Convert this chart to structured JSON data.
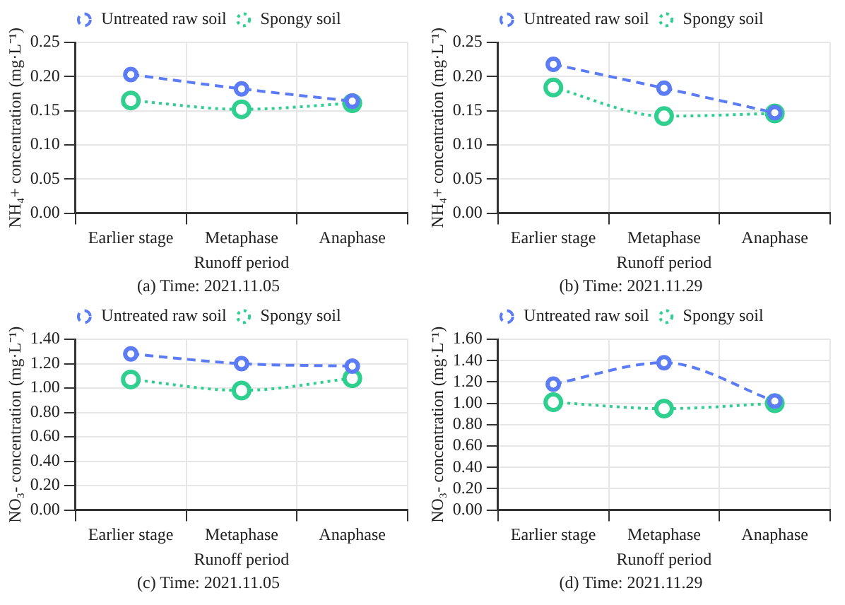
{
  "chart_data": [
    {
      "type": "line",
      "title": "(a) Time: 2021.11.05",
      "xlabel": "Runoff period",
      "ylabel": "NH₄+ concentration (mg·L⁻¹)",
      "categories": [
        "Earlier stage",
        "Metaphase",
        "Anaphase"
      ],
      "series": [
        {
          "name": "Untreated raw soil",
          "color": "#5b7cf5",
          "line_style": "dashed",
          "values": [
            0.203,
            0.182,
            0.164
          ]
        },
        {
          "name": "Spongy soil",
          "color": "#2ecf8f",
          "line_style": "dotted",
          "values": [
            0.165,
            0.152,
            0.161
          ]
        }
      ],
      "ylim": [
        0,
        0.25
      ],
      "yticks": [
        {
          "value": 0,
          "label": "0.00"
        },
        {
          "value": 0.05,
          "label": "0.05"
        },
        {
          "value": 0.1,
          "label": "0.10"
        },
        {
          "value": 0.15,
          "label": "0.15"
        },
        {
          "value": 0.2,
          "label": "0.20"
        },
        {
          "value": 0.25,
          "label": "0.25"
        }
      ],
      "grid": true,
      "legend": "top",
      "marker": "circle"
    },
    {
      "type": "line",
      "title": "(b) Time: 2021.11.29",
      "xlabel": "Runoff period",
      "ylabel": "NH₄+ concentration (mg·L⁻¹)",
      "categories": [
        "Earlier stage",
        "Metaphase",
        "Anaphase"
      ],
      "series": [
        {
          "name": "Untreated raw soil",
          "color": "#5b7cf5",
          "line_style": "dashed",
          "values": [
            0.218,
            0.183,
            0.147
          ]
        },
        {
          "name": "Spongy soil",
          "color": "#2ecf8f",
          "line_style": "dotted",
          "values": [
            0.184,
            0.142,
            0.146
          ]
        }
      ],
      "ylim": [
        0,
        0.25
      ],
      "yticks": [
        {
          "value": 0,
          "label": "0.00"
        },
        {
          "value": 0.05,
          "label": "0.05"
        },
        {
          "value": 0.1,
          "label": "0.10"
        },
        {
          "value": 0.15,
          "label": "0.15"
        },
        {
          "value": 0.2,
          "label": "0.20"
        },
        {
          "value": 0.25,
          "label": "0.25"
        }
      ],
      "grid": true,
      "legend": "top",
      "marker": "circle"
    },
    {
      "type": "line",
      "title": "(c) Time: 2021.11.05",
      "xlabel": "Runoff period",
      "ylabel": "NO₃- concentration (mg·L⁻¹)",
      "categories": [
        "Earlier stage",
        "Metaphase",
        "Anaphase"
      ],
      "series": [
        {
          "name": "Untreated raw soil",
          "color": "#5b7cf5",
          "line_style": "dashed",
          "values": [
            1.28,
            1.2,
            1.18
          ]
        },
        {
          "name": "Spongy soil",
          "color": "#2ecf8f",
          "line_style": "dotted",
          "values": [
            1.07,
            0.98,
            1.08
          ]
        }
      ],
      "ylim": [
        0,
        1.4
      ],
      "yticks": [
        {
          "value": 0,
          "label": "0.00"
        },
        {
          "value": 0.2,
          "label": "0.20"
        },
        {
          "value": 0.4,
          "label": "0.40"
        },
        {
          "value": 0.6,
          "label": "0.60"
        },
        {
          "value": 0.8,
          "label": "0.80"
        },
        {
          "value": 1,
          "label": "1.00"
        },
        {
          "value": 1.2,
          "label": "1.20"
        },
        {
          "value": 1.4,
          "label": "1.40"
        }
      ],
      "grid": true,
      "legend": "top",
      "marker": "circle"
    },
    {
      "type": "line",
      "title": "(d) Time: 2021.11.29",
      "xlabel": "Runoff period",
      "ylabel": "NO₃- concentration (mg·L⁻¹)",
      "categories": [
        "Earlier stage",
        "Metaphase",
        "Anaphase"
      ],
      "series": [
        {
          "name": "Untreated raw soil",
          "color": "#5b7cf5",
          "line_style": "dashed",
          "values": [
            1.18,
            1.38,
            1.02
          ]
        },
        {
          "name": "Spongy soil",
          "color": "#2ecf8f",
          "line_style": "dotted",
          "values": [
            1.01,
            0.95,
            1.0
          ]
        }
      ],
      "ylim": [
        0,
        1.6
      ],
      "yticks": [
        {
          "value": 0,
          "label": "0.00"
        },
        {
          "value": 0.2,
          "label": "0.20"
        },
        {
          "value": 0.4,
          "label": "0.40"
        },
        {
          "value": 0.6,
          "label": "0.60"
        },
        {
          "value": 0.8,
          "label": "0.80"
        },
        {
          "value": 1,
          "label": "1.00"
        },
        {
          "value": 1.2,
          "label": "1.20"
        },
        {
          "value": 1.4,
          "label": "1.40"
        },
        {
          "value": 1.6,
          "label": "1.60"
        }
      ],
      "grid": true,
      "legend": "top",
      "marker": "circle"
    }
  ]
}
